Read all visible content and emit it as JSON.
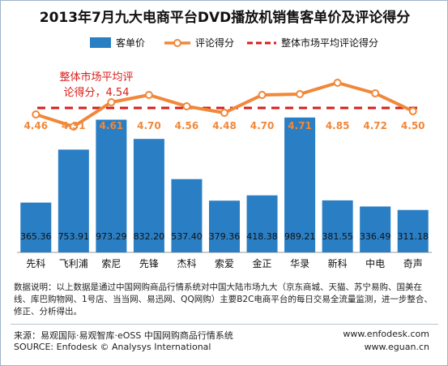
{
  "chart_data": {
    "type": "bar",
    "title": "2013年7月九大电商平台DVD播放机销售客单价及评论得分",
    "categories": [
      "先科",
      "飞利浦",
      "索尼",
      "先锋",
      "杰科",
      "索爱",
      "金正",
      "华录",
      "新科",
      "中电",
      "奇声"
    ],
    "series": [
      {
        "name": "客单价",
        "type": "bar",
        "axis": "left",
        "color": "#2a7ec4",
        "values": [
          365.36,
          753.91,
          973.29,
          832.2,
          537.4,
          379.36,
          418.38,
          989.21,
          381.55,
          336.49,
          311.18
        ],
        "value_labels": [
          "365.36",
          "753.91",
          "973.29",
          "832.20",
          "537.40",
          "379.36",
          "418.38",
          "989.21",
          "381.55",
          "336.49",
          "311.18"
        ]
      },
      {
        "name": "评论得分",
        "type": "line",
        "axis": "right",
        "color": "#f0883a",
        "values": [
          4.46,
          4.31,
          4.61,
          4.7,
          4.56,
          4.48,
          4.7,
          4.71,
          4.85,
          4.72,
          4.5
        ],
        "value_labels": [
          "4.46",
          "4.31",
          "4.61",
          "4.70",
          "4.56",
          "4.48",
          "4.70",
          "4.71",
          "4.85",
          "4.72",
          "4.50"
        ]
      },
      {
        "name": "整体市场平均评论得分",
        "type": "reference-line",
        "axis": "right",
        "color": "#d91e18",
        "value": 4.54
      }
    ],
    "annotation": {
      "line1": "整体市场平均评",
      "line2": "论得分，4.54",
      "color": "#d91e18"
    },
    "legend": "top",
    "grid": false
  },
  "footnote": "数据说明：以上数据是通过中国网购商品行情系统对中国大陆市场九大（京东商城、天猫、苏宁易购、国美在线、库巴购物网、1号店、当当网、易迅网、QQ网购）主要B2C电商平台的每日交易全流量监测，进一步整合、修正、分析得出。",
  "source_cn": "来源：易观国际·易观智库·eOSS 中国网购商品行情系统",
  "source_en": "SOURCE: Enfodesk © Analysys International",
  "url1": "www.enfodesk.com",
  "url2": "www.eguan.cn"
}
